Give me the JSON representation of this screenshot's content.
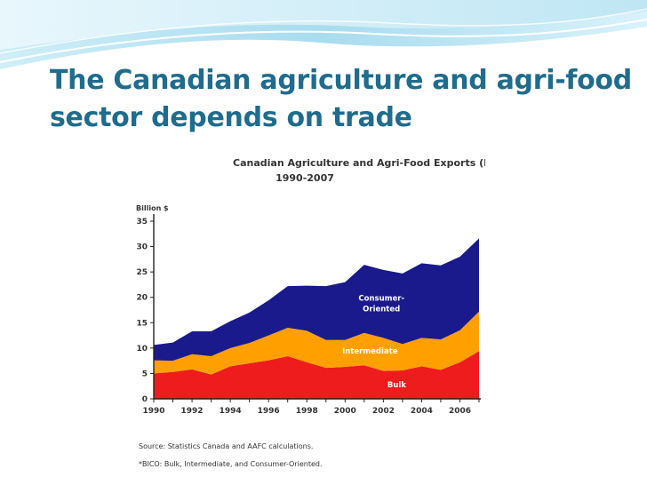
{
  "slide": {
    "title_line1": "The Canadian agriculture and agri-food",
    "title_line2": "sector depends on trade",
    "title_color": "#1f6c8c"
  },
  "chart_data": {
    "type": "area",
    "stacked": true,
    "title_line1": "Canadian Agriculture and Agri-Food Exports (BICO)*,",
    "title_line2": "1990-2007",
    "ylabel": "Billion $",
    "ylim": [
      0,
      35
    ],
    "yticks": [
      0,
      5,
      10,
      15,
      20,
      25,
      30,
      35
    ],
    "xlim": [
      1990,
      2007
    ],
    "xticks": [
      1990,
      1992,
      1994,
      1996,
      1998,
      2000,
      2002,
      2004,
      2006
    ],
    "x": [
      1990,
      1991,
      1992,
      1993,
      1994,
      1995,
      1996,
      1997,
      1998,
      1999,
      2000,
      2001,
      2002,
      2003,
      2004,
      2005,
      2006,
      2007
    ],
    "series": [
      {
        "name": "Bulk",
        "color": "#ee1c1c",
        "label_color": "#ffffff",
        "values": [
          5.0,
          5.3,
          5.8,
          4.8,
          6.4,
          7.0,
          7.6,
          8.4,
          7.2,
          6.1,
          6.3,
          6.6,
          5.5,
          5.6,
          6.4,
          5.7,
          7.2,
          9.4
        ]
      },
      {
        "name": "Intermediate",
        "color": "#ffa000",
        "label_color": "#ffffff",
        "values": [
          2.6,
          2.2,
          3.0,
          3.6,
          3.6,
          4.0,
          4.9,
          5.6,
          6.2,
          5.5,
          5.3,
          6.4,
          6.5,
          5.2,
          5.6,
          6.0,
          6.3,
          7.8
        ]
      },
      {
        "name": "Consumer-Oriented",
        "label_lines": [
          "Consumer-",
          "Oriented"
        ],
        "color": "#1a1a8c",
        "label_color": "#ffffff",
        "values": [
          3.0,
          3.6,
          4.5,
          4.9,
          5.3,
          6.0,
          6.9,
          8.2,
          8.9,
          10.6,
          11.4,
          13.4,
          13.4,
          13.9,
          14.7,
          14.6,
          14.5,
          14.4
        ]
      }
    ],
    "source_note": "Source: Statistics Canada and AAFC calculations.",
    "footnote": "*BICO: Bulk, Intermediate, and Consumer-Oriented.",
    "grid": false,
    "legend": "inline labels"
  }
}
